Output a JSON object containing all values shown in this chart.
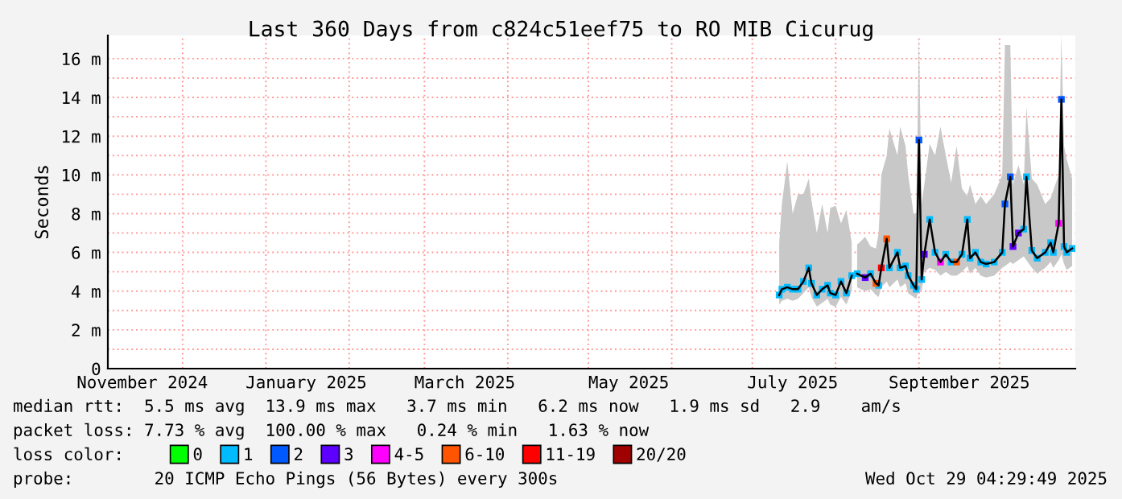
{
  "chart_data": {
    "type": "line",
    "title": "Last 360 Days from c824c51eef75 to RO MIB Cicurug",
    "ylabel": "Seconds",
    "legend_title": "loss color:",
    "legend": "bottom",
    "grid": true,
    "marker": "none",
    "line_style": "solid",
    "xlim": [
      "2024-11-03T04:30",
      "2025-10-29T04:30"
    ],
    "xticks": [
      {
        "value": "2024-11-16",
        "label": "November 2024"
      },
      {
        "value": "2025-01-16",
        "label": "January 2025"
      },
      {
        "value": "2025-03-16",
        "label": "March 2025"
      },
      {
        "value": "2025-05-16",
        "label": "May 2025"
      },
      {
        "value": "2025-07-16",
        "label": "July 2025"
      },
      {
        "value": "2025-09-16",
        "label": "September 2025"
      },
      {
        "value": "2024-12-01",
        "label": null
      },
      {
        "value": "2025-01-01",
        "label": null
      },
      {
        "value": "2025-02-01",
        "label": null
      },
      {
        "value": "2025-03-01",
        "label": null
      },
      {
        "value": "2025-04-01",
        "label": null
      },
      {
        "value": "2025-05-01",
        "label": null
      },
      {
        "value": "2025-06-01",
        "label": null
      },
      {
        "value": "2025-07-01",
        "label": null
      },
      {
        "value": "2025-08-01",
        "label": null
      },
      {
        "value": "2025-09-01",
        "label": null
      },
      {
        "value": "2025-10-01",
        "label": null
      }
    ],
    "ylim": [
      0,
      17.2
    ],
    "yticks": [
      0,
      {
        "value": 1,
        "label": null
      },
      {
        "value": 2,
        "label": "2 m"
      },
      {
        "value": 3,
        "label": null
      },
      {
        "value": 4,
        "label": "4 m"
      },
      {
        "value": 5,
        "label": null
      },
      {
        "value": 6,
        "label": "6 m"
      },
      {
        "value": 7,
        "label": null
      },
      {
        "value": 8,
        "label": "8 m"
      },
      {
        "value": 9,
        "label": null
      },
      {
        "value": 10,
        "label": "10 m"
      },
      {
        "value": 11,
        "label": null
      },
      {
        "value": 12,
        "label": "12 m"
      },
      {
        "value": 13,
        "label": null
      },
      {
        "value": 14,
        "label": "14 m"
      },
      {
        "value": 15,
        "label": null
      },
      {
        "value": 16,
        "label": "16 m"
      }
    ],
    "series": [
      {
        "color": "#000000",
        "x": [
          "2025-07-11",
          "2025-07-12",
          "2025-07-14",
          "2025-07-16",
          "2025-07-18",
          "2025-07-20",
          "2025-07-22",
          "2025-07-23",
          "2025-07-25",
          "2025-07-27",
          "2025-07-29",
          "2025-07-30",
          "2025-08-01",
          "2025-08-03",
          "2025-08-05",
          "2025-08-07",
          "2025-08-08",
          "2025-08-09",
          "2025-08-12",
          "2025-08-14",
          "2025-08-16",
          "2025-08-17",
          "2025-08-18",
          "2025-08-20",
          "2025-08-21",
          "2025-08-24",
          "2025-08-25",
          "2025-08-27",
          "2025-08-28",
          "2025-08-30",
          "2025-08-31",
          "2025-09-01",
          "2025-09-02",
          "2025-09-03",
          "2025-09-05",
          "2025-09-07",
          "2025-09-09",
          "2025-09-11",
          "2025-09-13",
          "2025-09-15",
          "2025-09-17",
          "2025-09-19",
          "2025-09-20",
          "2025-09-22",
          "2025-09-24",
          "2025-09-26",
          "2025-09-29",
          "2025-10-02",
          "2025-10-03",
          "2025-10-05",
          "2025-10-06",
          "2025-10-08",
          "2025-10-10",
          "2025-10-11",
          "2025-10-13",
          "2025-10-15",
          "2025-10-18",
          "2025-10-20",
          "2025-10-21",
          "2025-10-23",
          "2025-10-24",
          "2025-10-25",
          "2025-10-26",
          "2025-10-28"
        ],
        "values": [
          3.8,
          4.1,
          4.2,
          4.1,
          4.1,
          4.5,
          5.2,
          4.4,
          3.8,
          4.1,
          4.3,
          3.9,
          3.8,
          4.5,
          3.9,
          4.8,
          null,
          4.9,
          4.7,
          4.9,
          4.4,
          4.3,
          5.2,
          6.7,
          5.2,
          6.0,
          5.2,
          5.3,
          4.8,
          4.3,
          4.1,
          11.8,
          4.6,
          5.9,
          7.7,
          6.0,
          5.5,
          5.9,
          5.5,
          5.5,
          5.9,
          7.7,
          5.7,
          6.0,
          5.5,
          5.4,
          5.5,
          6.0,
          8.5,
          9.9,
          6.3,
          7.0,
          7.2,
          9.9,
          6.1,
          5.7,
          6.0,
          6.5,
          6.0,
          7.5,
          13.9,
          6.3,
          6.0,
          6.2
        ],
        "lower": [
          3.3,
          3.5,
          3.6,
          3.5,
          3.6,
          3.9,
          4.2,
          3.7,
          3.2,
          3.4,
          3.6,
          3.3,
          3.2,
          3.7,
          3.3,
          4.0,
          null,
          4.2,
          4.0,
          4.1,
          3.8,
          3.7,
          4.2,
          4.5,
          4.2,
          4.6,
          4.2,
          4.4,
          3.9,
          3.7,
          3.6,
          4.1,
          4.0,
          5.0,
          5.2,
          5.1,
          4.8,
          5.0,
          4.8,
          4.8,
          5.0,
          5.3,
          4.9,
          5.2,
          4.8,
          4.7,
          4.8,
          5.2,
          5.3,
          5.5,
          5.4,
          5.6,
          5.8,
          5.6,
          5.2,
          4.9,
          5.2,
          5.5,
          5.2,
          5.6,
          5.9,
          5.4,
          5.1,
          5.3
        ],
        "upper": [
          6.5,
          8.5,
          10.7,
          8.0,
          9.0,
          9.0,
          9.8,
          8.7,
          7.0,
          8.5,
          7.0,
          8.3,
          8.4,
          7.5,
          8.2,
          6.5,
          null,
          6.4,
          6.8,
          6.3,
          6.2,
          7.0,
          10.0,
          11.0,
          12.4,
          11.0,
          12.5,
          11.5,
          10.0,
          8.0,
          8.0,
          17.2,
          8.5,
          9.5,
          11.6,
          11.0,
          12.5,
          11.0,
          9.6,
          11.5,
          9.3,
          8.9,
          9.5,
          8.5,
          8.9,
          8.5,
          9.0,
          10.0,
          16.7,
          16.7,
          9.5,
          10.5,
          9.5,
          13.5,
          9.8,
          9.5,
          8.5,
          8.8,
          9.2,
          10.0,
          17.2,
          11.5,
          10.8,
          9.8
        ]
      },
      {
        "type": "scatter",
        "name": "0",
        "color": "#00ff00",
        "marker": "square"
      },
      {
        "type": "scatter",
        "name": "1",
        "color": "#00bbff",
        "marker": "square",
        "x": [
          "2025-07-11",
          "2025-07-12",
          "2025-07-14",
          "2025-07-16",
          "2025-07-18",
          "2025-07-20",
          "2025-07-22",
          "2025-07-23",
          "2025-07-25",
          "2025-07-27",
          "2025-07-29",
          "2025-07-30",
          "2025-08-01",
          "2025-08-03",
          "2025-08-05",
          "2025-08-07",
          "2025-08-09",
          "2025-08-14",
          "2025-08-17",
          "2025-08-21",
          "2025-08-24",
          "2025-08-25",
          "2025-08-27",
          "2025-08-28",
          "2025-08-30",
          "2025-08-31",
          "2025-09-02",
          "2025-09-05",
          "2025-09-07",
          "2025-09-11",
          "2025-09-13",
          "2025-09-17",
          "2025-09-19",
          "2025-09-20",
          "2025-09-22",
          "2025-09-24",
          "2025-09-26",
          "2025-09-29",
          "2025-10-02",
          "2025-10-10",
          "2025-10-11",
          "2025-10-13",
          "2025-10-15",
          "2025-10-18",
          "2025-10-20",
          "2025-10-21",
          "2025-10-25",
          "2025-10-26",
          "2025-10-28"
        ],
        "values": [
          3.8,
          4.1,
          4.2,
          4.1,
          4.1,
          4.5,
          5.2,
          4.4,
          3.8,
          4.1,
          4.3,
          3.9,
          3.8,
          4.5,
          3.9,
          4.8,
          4.9,
          4.9,
          4.3,
          5.2,
          6.0,
          5.2,
          5.3,
          4.8,
          4.3,
          4.1,
          4.6,
          7.7,
          6.0,
          5.9,
          5.5,
          5.9,
          7.7,
          5.7,
          6.0,
          5.5,
          5.4,
          5.5,
          6.0,
          7.2,
          9.9,
          6.1,
          5.7,
          6.0,
          6.5,
          6.0,
          6.3,
          6.0,
          6.2
        ]
      },
      {
        "type": "scatter",
        "name": "2",
        "color": "#0059ff",
        "marker": "square",
        "x": [
          "2025-09-01",
          "2025-10-03",
          "2025-10-05",
          "2025-10-24"
        ],
        "values": [
          11.8,
          8.5,
          9.9,
          13.9
        ]
      },
      {
        "type": "scatter",
        "name": "3",
        "color": "#5e00ff",
        "marker": "square",
        "x": [
          "2025-08-12",
          "2025-09-03",
          "2025-10-06",
          "2025-10-08"
        ],
        "values": [
          4.7,
          5.9,
          6.3,
          7.0
        ]
      },
      {
        "type": "scatter",
        "name": "4-5",
        "color": "#ff00ff",
        "marker": "square",
        "x": [
          "2025-09-09",
          "2025-10-23"
        ],
        "values": [
          5.5,
          7.5
        ]
      },
      {
        "type": "scatter",
        "name": "6-10",
        "color": "#ff5500",
        "marker": "square",
        "x": [
          "2025-08-16",
          "2025-08-20",
          "2025-09-15"
        ],
        "values": [
          4.4,
          6.7,
          5.5
        ]
      },
      {
        "type": "scatter",
        "name": "11-19",
        "color": "#ff0000",
        "marker": "square",
        "x": [
          "2025-08-18"
        ],
        "values": [
          5.2
        ]
      },
      {
        "type": "scatter",
        "name": "20/20",
        "color": "#a10000",
        "marker": "square"
      }
    ],
    "annotations": [
      "median rtt:  5.5 ms avg  13.9 ms max   3.7 ms min   6.2 ms now   1.9 ms sd   2.9    am/s",
      "packet loss: 7.73 % avg  100.00 % max   0.24 % min   1.63 % now",
      "probe:        20 ICMP Echo Pings (56 Bytes) every 300s",
      "Wed Oct 29 04:29:49 2025"
    ]
  }
}
